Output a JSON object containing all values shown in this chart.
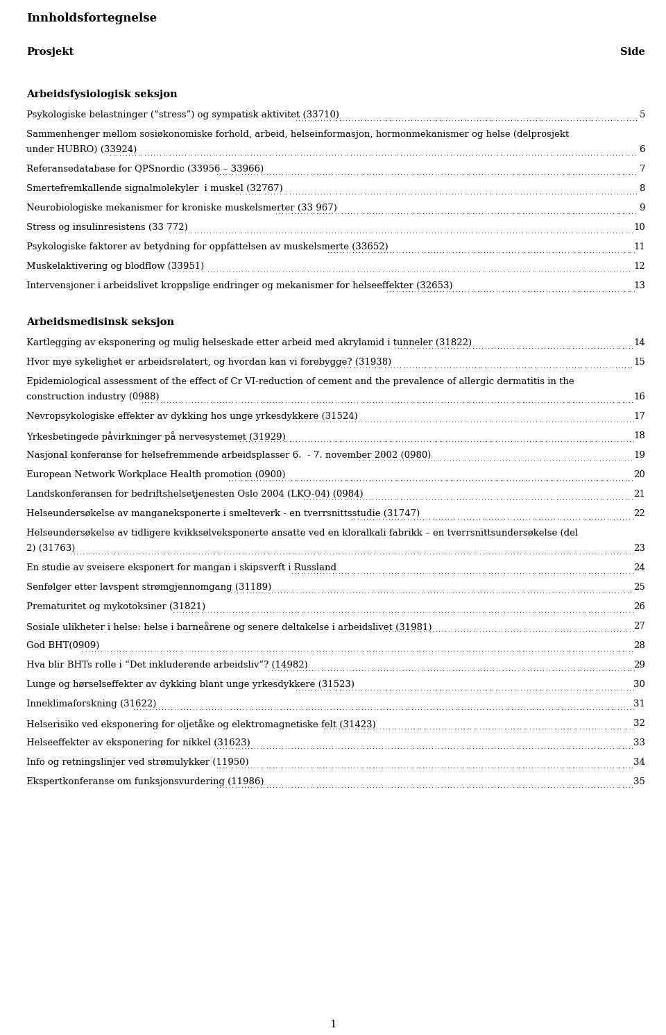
{
  "title": "Innholdsfortegnelse",
  "col_left": "Prosjekt",
  "col_right": "Side",
  "background_color": "#ffffff",
  "text_color": "#000000",
  "sections": [
    {
      "heading": "Arbeidsfysiologisk seksjon",
      "entries": [
        {
          "text": "Psykologiske belastninger (“stress”) og sympatisk aktivitet (33710)",
          "page": "5"
        },
        {
          "text": "Sammenhenger mellom sosiøkonomiske forhold, arbeid, helseinformasjon, hormonmekanismer og helse (delprosjekt\nunder HUBRO) (33924)",
          "page": "6"
        },
        {
          "text": "Referansedatabase for QPSnordic (33956 – 33966)",
          "page": "7"
        },
        {
          "text": "Smertefremkallende signalmolekyler  i muskel (32767)",
          "page": "8"
        },
        {
          "text": "Neurobiologiske mekanismer for kroniske muskelsmerter (33 967)",
          "page": "9"
        },
        {
          "text": "Stress og insulinresistens (33 772)",
          "page": "10"
        },
        {
          "text": "Psykologiske faktorer av betydning for oppfattelsen av muskelsmerte (33652)",
          "page": "11"
        },
        {
          "text": "Muskelaktivering og blodflow (33951)",
          "page": "12"
        },
        {
          "text": "Intervensjoner i arbeidslivet kroppslige endringer og mekanismer for helseeffekter (32653)",
          "page": "13"
        }
      ]
    },
    {
      "heading": "Arbeidsmedisinsk seksjon",
      "entries": [
        {
          "text": "Kartlegging av eksponering og mulig helseskade etter arbeid med akrylamid i tunneler (31822)",
          "page": "14"
        },
        {
          "text": "Hvor mye sykelighet er arbeidsrelatert, og hvordan kan vi forebygge? (31938)",
          "page": "15"
        },
        {
          "text": "Epidemiological assessment of the effect of Cr VI-reduction of cement and the prevalence of allergic dermatitis in the\nconstruction industry (0988)",
          "page": "16"
        },
        {
          "text": "Nevropsykologiske effekter av dykking hos unge yrkesdykkere (31524)",
          "page": "17"
        },
        {
          "text": "Yrkesbetingede påvirkninger på nervesystemet (31929)",
          "page": "18"
        },
        {
          "text": "Nasjonal konferanse for helsefremmende arbeidsplasser 6.  - 7. november 2002 (0980)",
          "page": "19"
        },
        {
          "text": "European Network Workplace Health promotion (0900)",
          "page": "20"
        },
        {
          "text": "Landskonferansen for bedriftshelsetjenesten Oslo 2004 (LKO-04) (0984)",
          "page": "21"
        },
        {
          "text": "Helseundersøkelse av manganeksponerte i smelteverk - en tverrsnittsstudie (31747)",
          "page": "22"
        },
        {
          "text": "Helseundersøkelse av tidligere kvikksølveksponerte ansatte ved en kloralkali fabrikk – en tverrsnittsundersøkelse (del\n2) (31763)",
          "page": "23"
        },
        {
          "text": "En studie av sveisere eksponert for mangan i skipsverft i Russland",
          "page": "24"
        },
        {
          "text": "Senfølger etter lavspent strømgjennomgang (31189)",
          "page": "25"
        },
        {
          "text": "Prematuritet og mykotoksiner (31821)",
          "page": "26"
        },
        {
          "text": "Sosiale ulikheter i helse: helse i barneårene og senere deltakelse i arbeidslivet (31981)",
          "page": "27"
        },
        {
          "text": "God BHT(0909)",
          "page": "28"
        },
        {
          "text": "Hva blir BHTs rolle i “Det inkluderende arbeidsliv”? (14982)",
          "page": "29"
        },
        {
          "text": "Lunge og hørselseffekter av dykking blant unge yrkesdykkere (31523)",
          "page": "30"
        },
        {
          "text": "Inneklimaforskning (31622)",
          "page": "31"
        },
        {
          "text": "Helserisiko ved eksponering for oljetåke og elektromagnetiske felt (31423)",
          "page": "32"
        },
        {
          "text": "Helseeffekter av eksponering for nikkel (31623)",
          "page": "33"
        },
        {
          "text": "Info og retningslinjer ved strømulykker (11950)",
          "page": "34"
        },
        {
          "text": "Ekspertkonferanse om funksjonsvurdering (11986)",
          "page": "35"
        }
      ]
    }
  ],
  "footer_page": "1",
  "title_fontsize": 12,
  "heading_fontsize": 10.5,
  "entry_fontsize": 9.5,
  "header_fontsize": 10.5
}
